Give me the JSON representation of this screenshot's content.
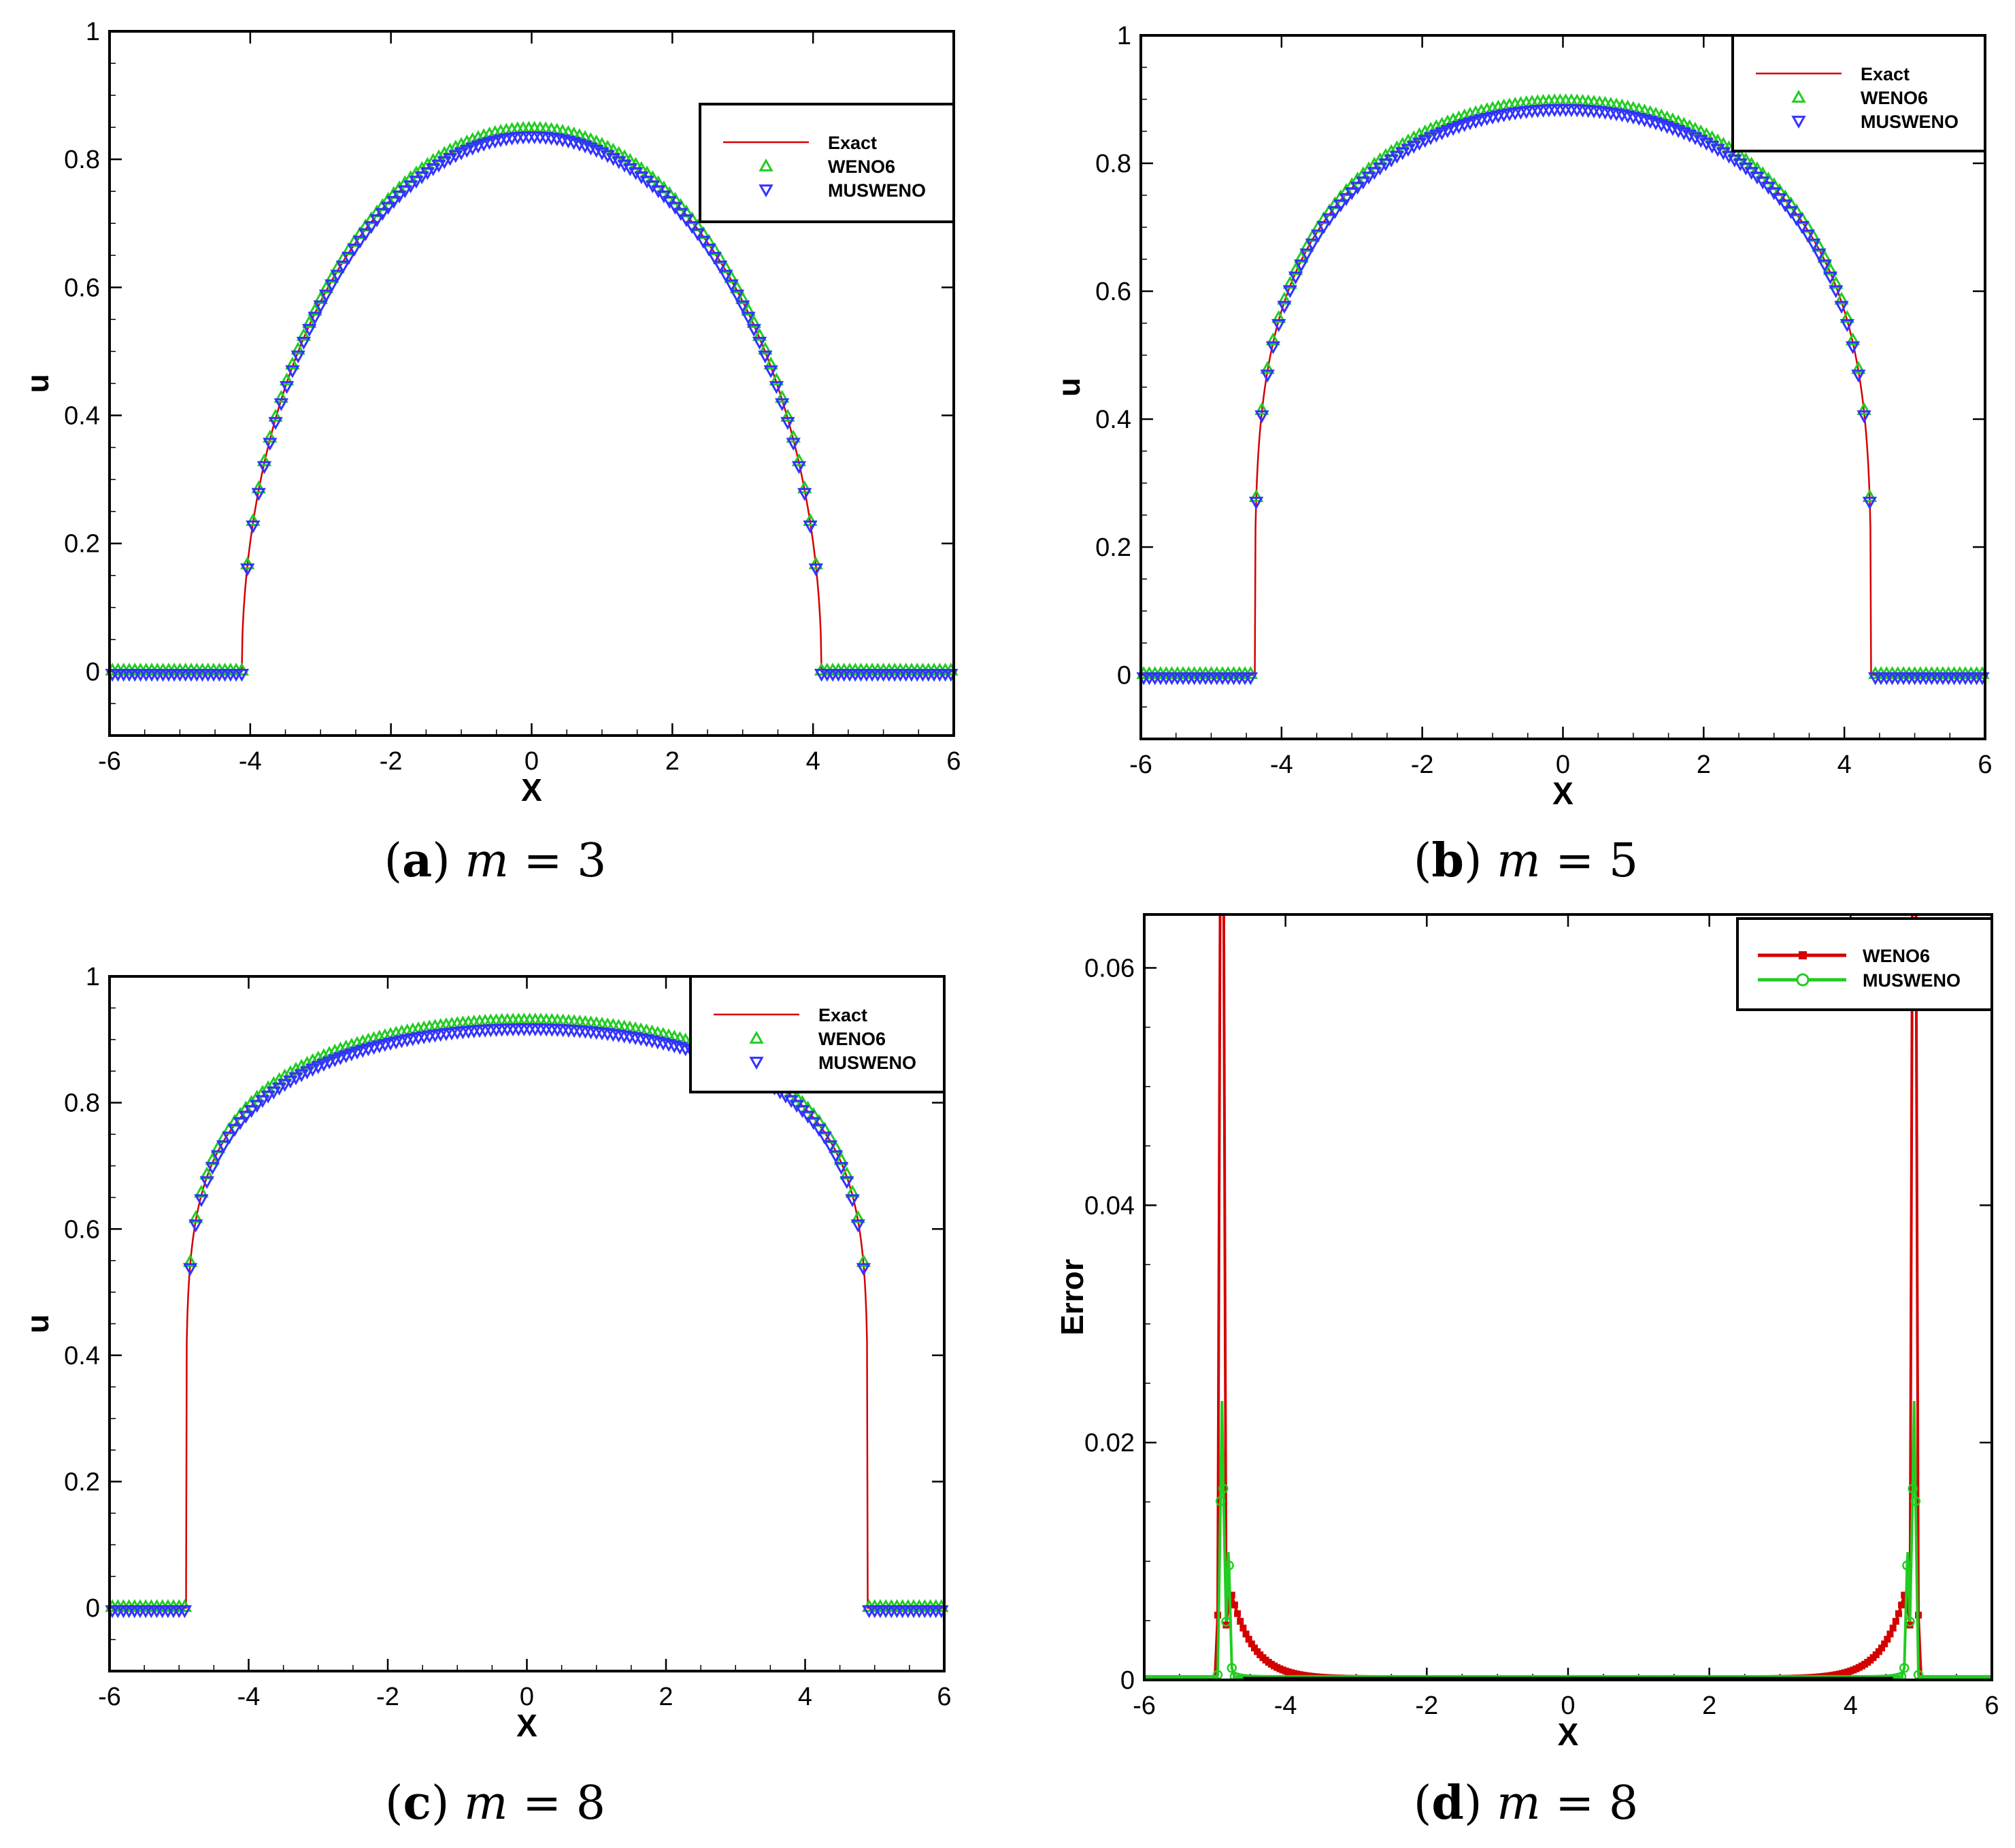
{
  "panels": [
    {
      "id": "a",
      "caption": {
        "label": "a",
        "var": "m",
        "eq": "=",
        "value": "3"
      },
      "chart_data": {
        "type": "line",
        "xlabel": "X",
        "ylabel": "u",
        "xlim": [
          -6,
          6
        ],
        "ylim": [
          -0.1,
          1
        ],
        "xticks": [
          "-6",
          "-4",
          "-2",
          "0",
          "2",
          "4",
          "6"
        ],
        "yticks": [
          "0",
          "0.2",
          "0.4",
          "0.6",
          "0.8",
          "1"
        ],
        "grid": false,
        "legend_position": "top-right",
        "m": 3,
        "peak": 0.843,
        "front": 4.12,
        "series": [
          {
            "name": "Exact",
            "style": "line",
            "color": "#d40000"
          },
          {
            "name": "WENO6",
            "style": "triangle-up",
            "color": "#22cc22"
          },
          {
            "name": "MUSWENO",
            "style": "triangle-down",
            "color": "#3333ff"
          }
        ]
      }
    },
    {
      "id": "b",
      "caption": {
        "label": "b",
        "var": "m",
        "eq": "=",
        "value": "5"
      },
      "chart_data": {
        "type": "line",
        "xlabel": "X",
        "ylabel": "u",
        "xlim": [
          -6,
          6
        ],
        "ylim": [
          -0.1,
          1
        ],
        "xticks": [
          "-6",
          "-4",
          "-2",
          "0",
          "2",
          "4",
          "6"
        ],
        "yticks": [
          "0",
          "0.2",
          "0.4",
          "0.6",
          "0.8",
          "1"
        ],
        "grid": false,
        "legend_position": "top-right",
        "m": 5,
        "peak": 0.892,
        "front": 4.38,
        "series": [
          {
            "name": "Exact",
            "style": "line",
            "color": "#d40000"
          },
          {
            "name": "WENO6",
            "style": "triangle-up",
            "color": "#22cc22"
          },
          {
            "name": "MUSWENO",
            "style": "triangle-down",
            "color": "#3333ff"
          }
        ]
      }
    },
    {
      "id": "c",
      "caption": {
        "label": "c",
        "var": "m",
        "eq": "=",
        "value": "8"
      },
      "chart_data": {
        "type": "line",
        "xlabel": "X",
        "ylabel": "u",
        "xlim": [
          -6,
          6
        ],
        "ylim": [
          -0.1,
          1
        ],
        "xticks": [
          "-6",
          "-4",
          "-2",
          "0",
          "2",
          "4",
          "6"
        ],
        "yticks": [
          "0",
          "0.2",
          "0.4",
          "0.6",
          "0.8",
          "1"
        ],
        "grid": false,
        "legend_position": "top-right",
        "m": 8,
        "peak": 0.925,
        "front": 4.9,
        "series": [
          {
            "name": "Exact",
            "style": "line",
            "color": "#d40000"
          },
          {
            "name": "WENO6",
            "style": "triangle-up",
            "color": "#22cc22"
          },
          {
            "name": "MUSWENO",
            "style": "triangle-down",
            "color": "#3333ff"
          }
        ]
      }
    },
    {
      "id": "d",
      "caption": {
        "label": "d",
        "var": "m",
        "eq": "=",
        "value": "8"
      },
      "chart_data": {
        "type": "line",
        "xlabel": "X",
        "ylabel": "Error",
        "xlim": [
          -6,
          6
        ],
        "ylim": [
          0,
          0.0645
        ],
        "xticks": [
          "-6",
          "-4",
          "-2",
          "0",
          "2",
          "4",
          "6"
        ],
        "yticks": [
          "0",
          "0.02",
          "0.04",
          "0.06"
        ],
        "grid": false,
        "legend_position": "top-right",
        "front": 4.9,
        "series": [
          {
            "name": "WENO6",
            "style": "line-square",
            "color": "#d40000",
            "spike_peak": 0.0645,
            "secondary_peak": 0.0075
          },
          {
            "name": "MUSWENO",
            "style": "line-circle",
            "color": "#22cc22",
            "spike_peak": 0.0235,
            "secondary_peak": 0.0102
          }
        ]
      }
    }
  ]
}
